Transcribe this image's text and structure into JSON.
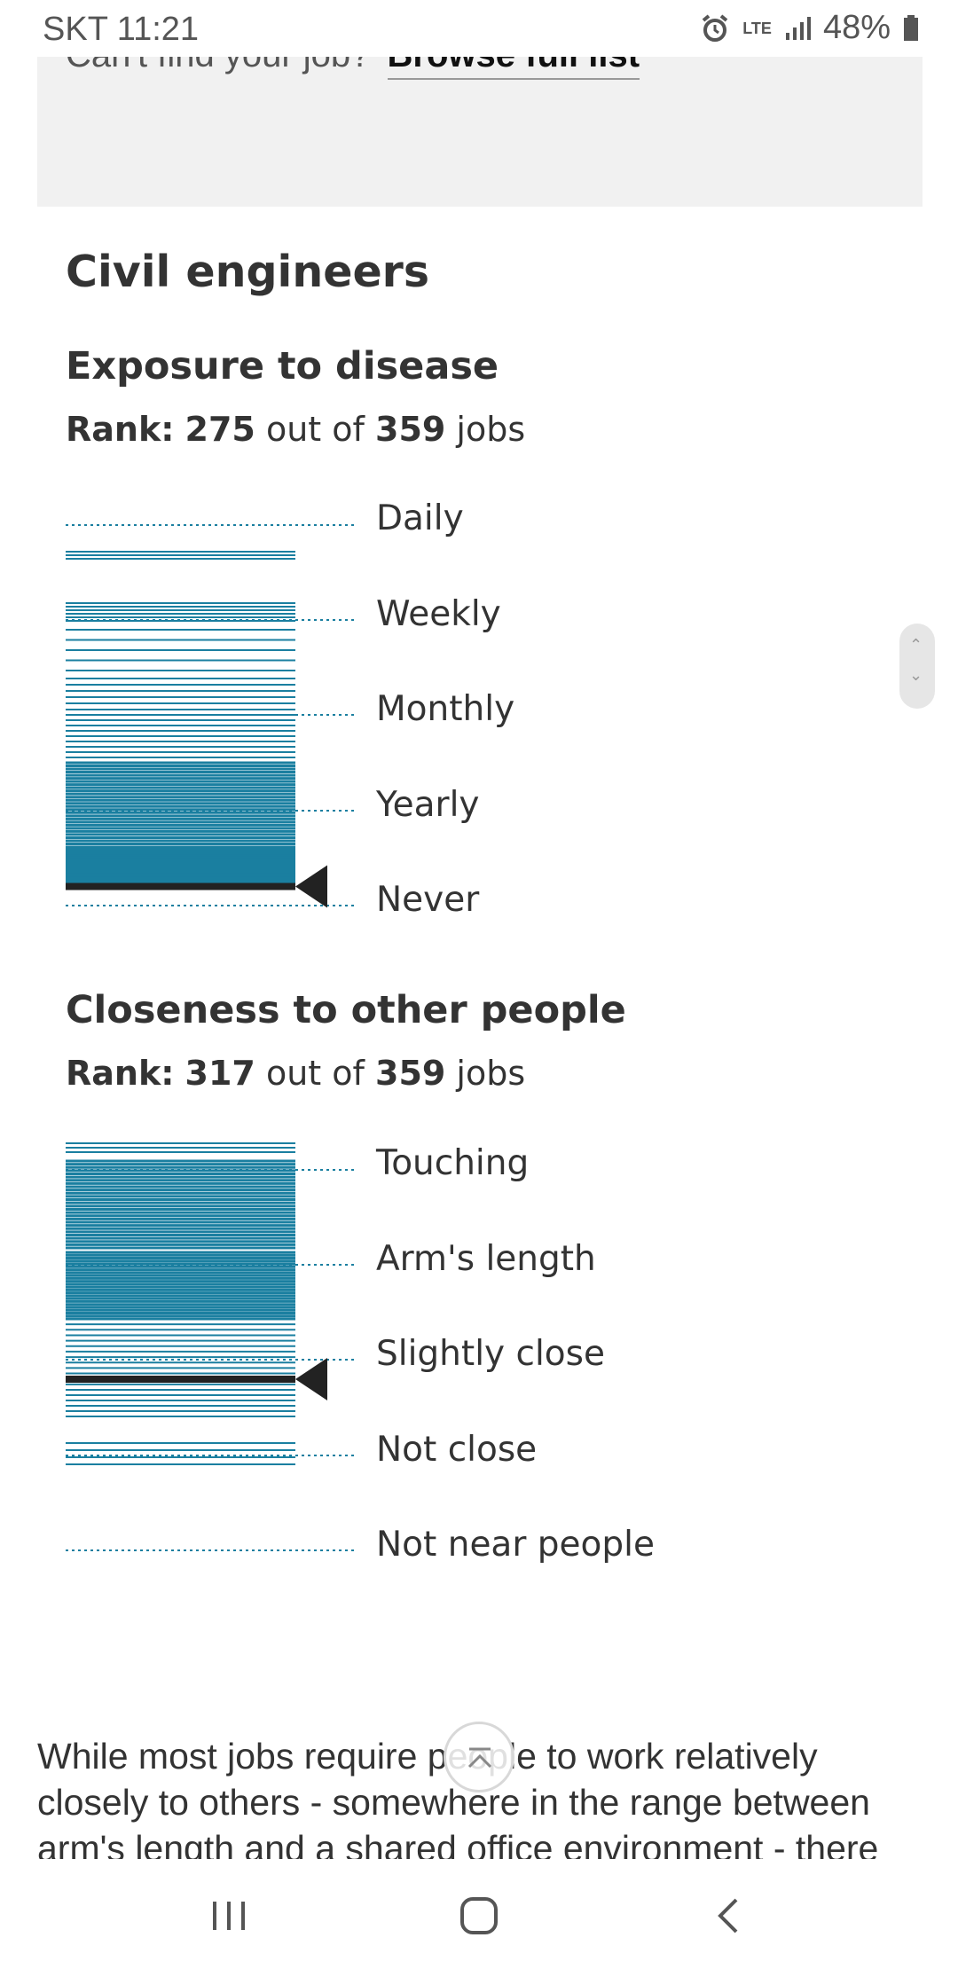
{
  "status_bar": {
    "carrier_time": "SKT 11:21",
    "network": "LTE",
    "battery": "48%"
  },
  "search_box": {
    "prompt": "Can't find your job?",
    "link": "Browse full list"
  },
  "job_title": "Civil engineers",
  "sections": [
    {
      "title": "Exposure to disease",
      "rank_label": "Rank:",
      "rank": "275",
      "out_of": "out of",
      "total": "359",
      "unit": "jobs",
      "levels": [
        "Daily",
        "Weekly",
        "Monthly",
        "Yearly",
        "Never"
      ],
      "marker_level_position": 0.95
    },
    {
      "title": "Closeness to other people",
      "rank_label": "Rank:",
      "rank": "317",
      "out_of": "out of",
      "total": "359",
      "unit": "jobs",
      "levels": [
        "Touching",
        "Arm's length",
        "Slightly close",
        "Not close",
        "Not near people"
      ],
      "marker_level_position": 0.55
    }
  ],
  "paragraph": "While most jobs require people to work relatively closely to others - somewhere in the range between arm's length and a shared office environment - there",
  "colors": {
    "bar": "#1a7fa0",
    "marker": "#222222",
    "dotted": "#1a7fa0",
    "panel": "#f1f1f1"
  },
  "icons": {
    "scroll_top": "chevron-up-icon",
    "nav_recent": "recent-apps-icon",
    "nav_home": "home-icon",
    "nav_back": "back-icon"
  }
}
